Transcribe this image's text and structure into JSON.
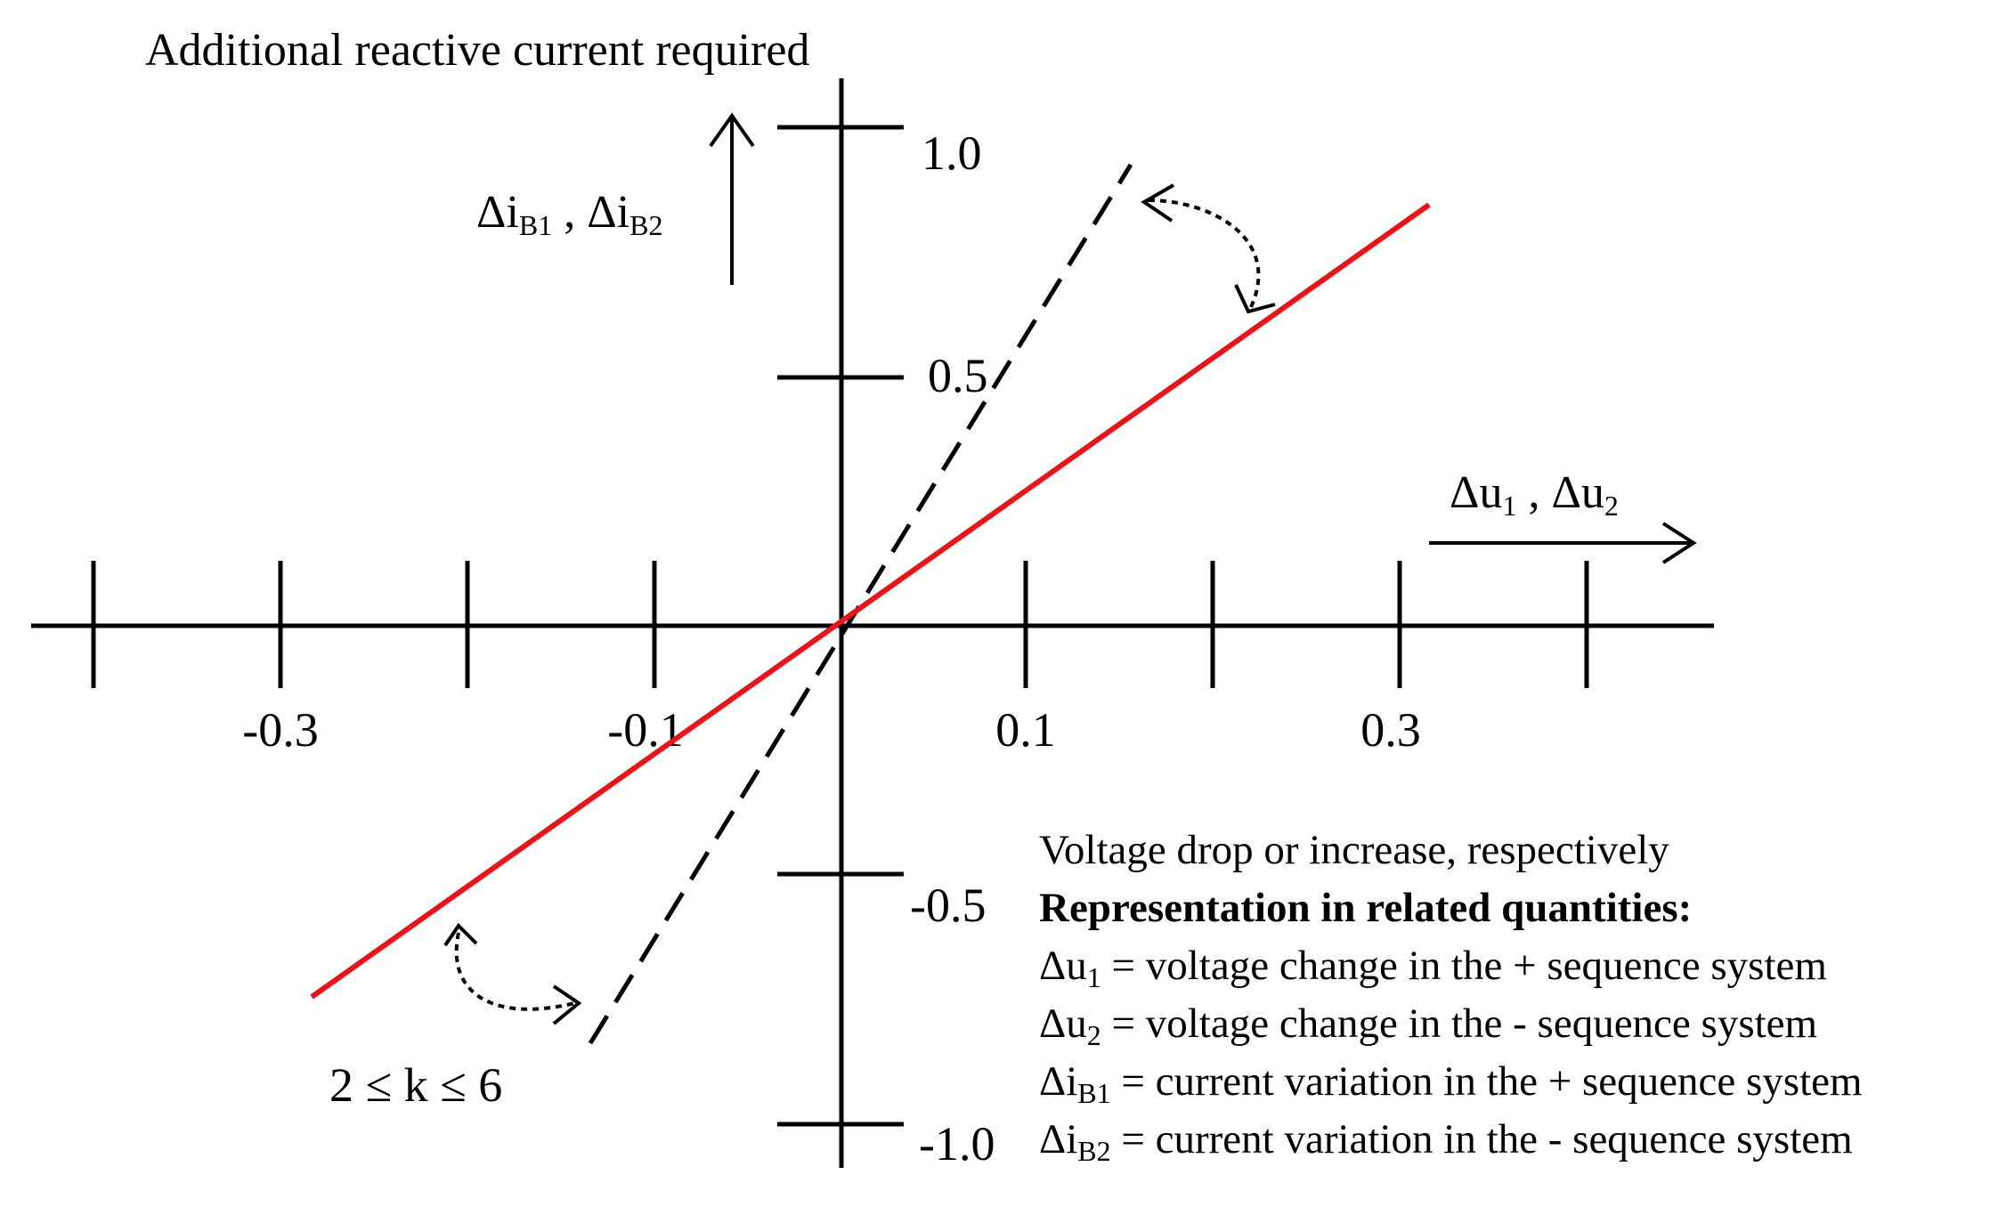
{
  "title": "Additional reactive current required",
  "y_axis_label": {
    "delta": "Δi",
    "sub1": "B1",
    "sep": " , ",
    "sub2": "B2"
  },
  "x_axis_label": {
    "delta": "Δu",
    "sub1": "1",
    "sep": " , ",
    "sub2": "2"
  },
  "x_ticks": [
    "-0.3",
    "-0.1",
    "0.1",
    "0.3"
  ],
  "y_ticks": [
    "1.0",
    "0.5",
    "-0.5",
    "-1.0"
  ],
  "k_label": "2 ≤ k ≤ 6",
  "legend": {
    "line1": "Voltage drop or increase, respectively",
    "line2": "Representation in related quantities:",
    "items": [
      {
        "sym": "Δu",
        "sub": "1",
        "text": " = voltage change in the + sequence system"
      },
      {
        "sym": "Δu",
        "sub": "2",
        "text": " = voltage change in the - sequence system"
      },
      {
        "sym": "Δi",
        "sub": "B1",
        "text": " = current variation in the + sequence system"
      },
      {
        "sym": "Δi",
        "sub": "B2",
        "text": " = current variation in the - sequence system"
      }
    ]
  },
  "colors": {
    "characteristic_line": "#e8141a",
    "axes": "#000000"
  }
}
